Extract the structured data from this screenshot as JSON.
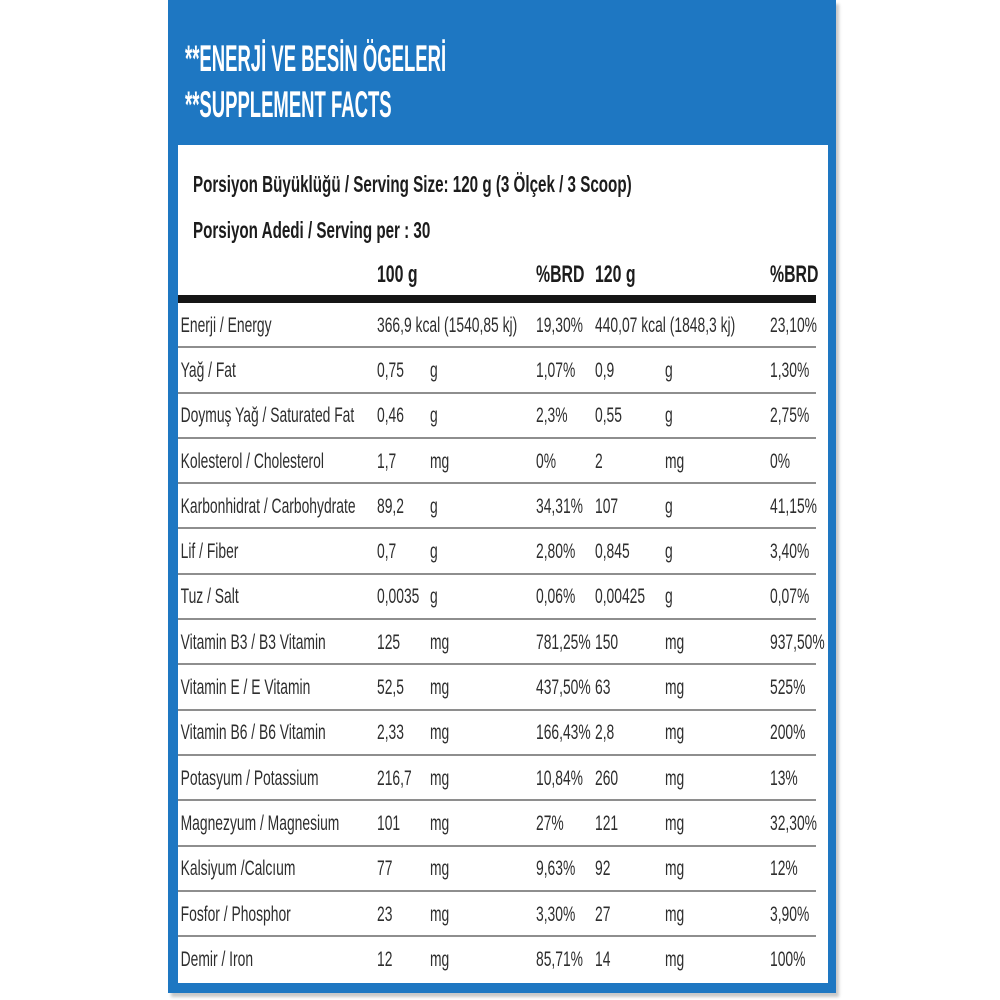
{
  "header": {
    "title_tr": "**ENERJİ VE BESİN ÖGELERİ",
    "title_en": "**SUPPLEMENT FACTS"
  },
  "serving": {
    "size_line": "Porsiyon Büyüklüğü / Serving Size: 120 g (3 Ölçek / 3 Scoop)",
    "count_line": "Porsiyon Adedi / Serving per : 30"
  },
  "table": {
    "columns": [
      "100 g",
      "%BRD",
      "120 g",
      "%BRD"
    ],
    "rows": [
      {
        "label": "Enerji / Energy",
        "v1": "366,9 kcal (1540,85 kj)",
        "u1": "",
        "p1": "19,30%",
        "v2": "440,07 kcal (1848,3 kj)",
        "u2": "",
        "p2": "23,10%"
      },
      {
        "label": "Yağ / Fat",
        "v1": "0,75",
        "u1": "g",
        "p1": "1,07%",
        "v2": "0,9",
        "u2": "g",
        "p2": "1,30%"
      },
      {
        "label": "Doymuş Yağ / Saturated Fat",
        "v1": "0,46",
        "u1": "g",
        "p1": "2,3%",
        "v2": "0,55",
        "u2": "g",
        "p2": "2,75%"
      },
      {
        "label": "Kolesterol / Cholesterol",
        "v1": "1,7",
        "u1": "mg",
        "p1": "0%",
        "v2": "2",
        "u2": "mg",
        "p2": "0%"
      },
      {
        "label": "Karbonhidrat / Carbohydrate",
        "v1": "89,2",
        "u1": "g",
        "p1": "34,31%",
        "v2": "107",
        "u2": "g",
        "p2": "41,15%"
      },
      {
        "label": "Lif / Fiber",
        "v1": "0,7",
        "u1": "g",
        "p1": "2,80%",
        "v2": "0,845",
        "u2": "g",
        "p2": "3,40%"
      },
      {
        "label": "Tuz / Salt",
        "v1": "0,0035",
        "u1": "g",
        "p1": "0,06%",
        "v2": "0,00425",
        "u2": "g",
        "p2": "0,07%"
      },
      {
        "label": "Vitamin B3 / B3 Vitamin",
        "v1": "125",
        "u1": "mg",
        "p1": "781,25%",
        "v2": "150",
        "u2": "mg",
        "p2": "937,50%"
      },
      {
        "label": "Vitamin E / E Vitamin",
        "v1": "52,5",
        "u1": "mg",
        "p1": "437,50%",
        "v2": "63",
        "u2": "mg",
        "p2": "525%"
      },
      {
        "label": "Vitamin B6 / B6 Vitamin",
        "v1": "2,33",
        "u1": "mg",
        "p1": "166,43%",
        "v2": "2,8",
        "u2": "mg",
        "p2": "200%"
      },
      {
        "label": "Potasyum / Potassium",
        "v1": "216,7",
        "u1": "mg",
        "p1": "10,84%",
        "v2": "260",
        "u2": "mg",
        "p2": "13%"
      },
      {
        "label": "Magnezyum / Magnesium",
        "v1": "101",
        "u1": "mg",
        "p1": "27%",
        "v2": "121",
        "u2": "mg",
        "p2": "32,30%"
      },
      {
        "label": "Kalsiyum /Calcıum",
        "v1": "77",
        "u1": "mg",
        "p1": "9,63%",
        "v2": "92",
        "u2": "mg",
        "p2": "12%"
      },
      {
        "label": "Fosfor / Phosphor",
        "v1": "23",
        "u1": "mg",
        "p1": "3,30%",
        "v2": "27",
        "u2": "mg",
        "p2": "3,90%"
      },
      {
        "label": "Demir / Iron",
        "v1": "12",
        "u1": "mg",
        "p1": "85,71%",
        "v2": "14",
        "u2": "mg",
        "p2": "100%"
      }
    ]
  },
  "colors": {
    "panel_blue": "#1e77c2",
    "text_dark": "#1c1c1c",
    "divider_gray": "#8e8e8e",
    "header_bar_black": "#151515"
  }
}
